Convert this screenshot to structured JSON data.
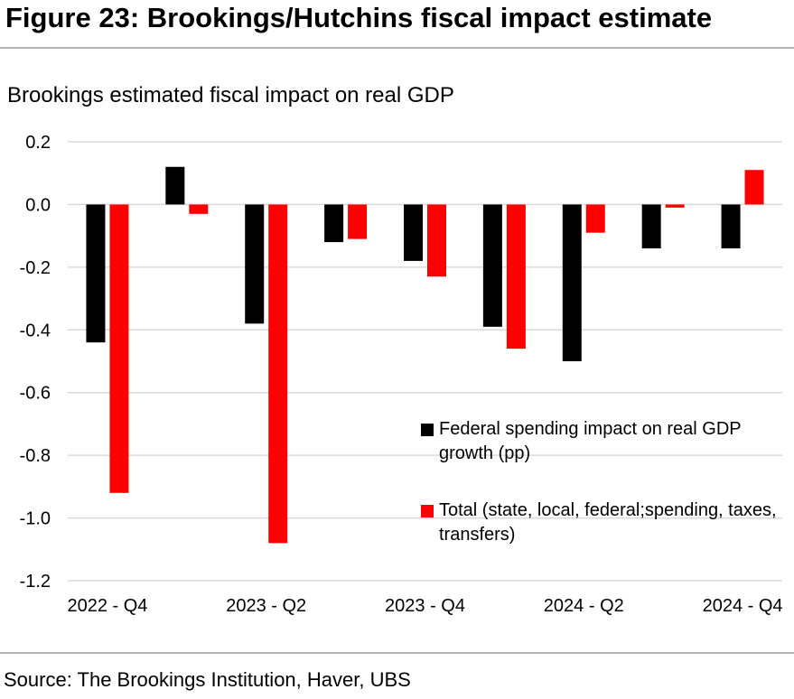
{
  "figure_title": "Figure 23: Brookings/Hutchins fiscal impact estimate",
  "source": "Source: The Brookings Institution, Haver, UBS",
  "chart_data": {
    "type": "bar",
    "title": "Brookings estimated fiscal impact on real GDP",
    "xlabel": "",
    "ylabel": "",
    "ylim": [
      -1.2,
      0.2
    ],
    "yticks": [
      0.2,
      0.0,
      -0.2,
      -0.4,
      -0.6,
      -0.8,
      -1.0,
      -1.2
    ],
    "ytick_labels": [
      "0.2",
      "0.0",
      "-0.2",
      "-0.4",
      "-0.6",
      "-0.8",
      "-1.0",
      "-1.2"
    ],
    "categories": [
      "2022 - Q4",
      "2023 - Q1",
      "2023 - Q2",
      "2023 - Q3",
      "2023 - Q4",
      "2024 - Q1",
      "2024 - Q2",
      "2024 - Q3",
      "2024 - Q4"
    ],
    "xtick_labels": [
      "2022 - Q4",
      "",
      "2023 - Q2",
      "",
      "2023 - Q4",
      "",
      "2024 - Q2",
      "",
      "2024 - Q4"
    ],
    "grid": true,
    "legend_position": "center-right",
    "series": [
      {
        "name": "Federal spending impact on real GDP growth (pp)",
        "color": "#000000",
        "values": [
          -0.44,
          0.12,
          -0.38,
          -0.12,
          -0.18,
          -0.39,
          -0.5,
          -0.14,
          -0.14
        ]
      },
      {
        "name": "Total (state, local, federal;spending, taxes, transfers)",
        "color": "#ff0000",
        "values": [
          -0.92,
          -0.03,
          -1.08,
          -0.11,
          -0.23,
          -0.46,
          -0.09,
          -0.01,
          0.11
        ]
      }
    ]
  }
}
